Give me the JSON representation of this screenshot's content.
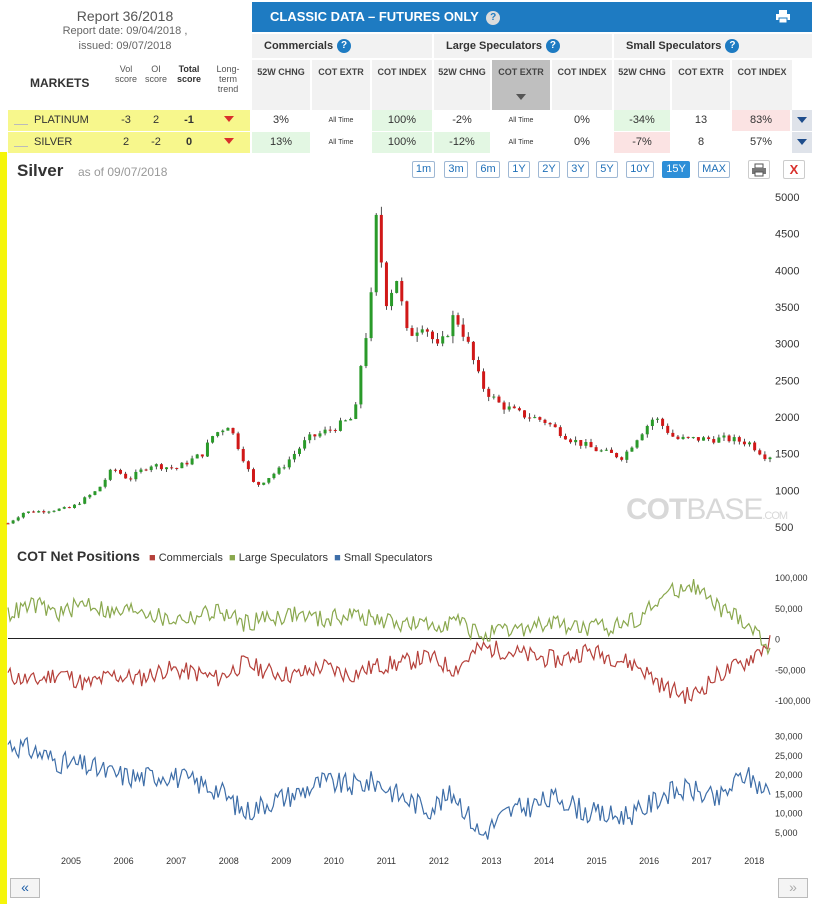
{
  "report": {
    "title": "Report 36/2018",
    "report_date": "Report date: 09/04/2018 ,",
    "issued": "issued: 09/07/2018"
  },
  "header": {
    "title": "CLASSIC DATA – FUTURES ONLY"
  },
  "groups": {
    "commercials": "Commercials",
    "large": "Large Speculators",
    "small": "Small Speculators"
  },
  "markets_header": {
    "markets": "MARKETS",
    "vol": "Vol score",
    "oi": "OI score",
    "total": "Total score",
    "trend": "Long-term trend"
  },
  "col_headers": {
    "chng": "52W CHNG",
    "extr": "COT EXTR",
    "index": "COT INDEX"
  },
  "rows": [
    {
      "name": "PLATINUM",
      "vol": "-3",
      "oi": "2",
      "total": "-1",
      "c_chng": "3%",
      "c_extr": "All Time",
      "c_index": "100%",
      "l_chng": "-2%",
      "l_extr": "All Time",
      "l_index": "0%",
      "s_chng": "-34%",
      "s_extr": "13",
      "s_index": "83%"
    },
    {
      "name": "SILVER",
      "vol": "2",
      "oi": "-2",
      "total": "0",
      "c_chng": "13%",
      "c_extr": "All Time",
      "c_index": "100%",
      "l_chng": "-12%",
      "l_extr": "All Time",
      "l_index": "0%",
      "s_chng": "-7%",
      "s_extr": "8",
      "s_index": "57%"
    }
  ],
  "chart_header": {
    "title": "Silver",
    "date": "as of 09/07/2018",
    "close": "X"
  },
  "ranges": [
    "1m",
    "3m",
    "6m",
    "1Y",
    "2Y",
    "3Y",
    "5Y",
    "10Y",
    "15Y",
    "MAX"
  ],
  "active_range": "15Y",
  "watermark": {
    "a": "COT",
    "b": "BASE",
    "c": ".COM"
  },
  "cot_title": "COT Net Positions",
  "nav": {
    "prev": "«",
    "next": "»"
  },
  "colors": {
    "commercials": "#b5403a",
    "large": "#8aa84e",
    "small": "#3e6ea8",
    "up": "#2a9a2a",
    "down": "#d01818"
  },
  "chart_data": [
    {
      "type": "candlestick",
      "title": "Silver",
      "x_ticks": [
        "2005",
        "2006",
        "2007",
        "2008",
        "2009",
        "2010",
        "2011",
        "2012",
        "2013",
        "2014",
        "2015",
        "2016",
        "2017",
        "2018"
      ],
      "y_ticks": [
        500,
        1000,
        1500,
        2000,
        2500,
        3000,
        3500,
        4000,
        4500,
        5000
      ],
      "ylim": [
        500,
        5000
      ],
      "x": [
        2004.3,
        2004.6,
        2005.0,
        2005.5,
        2006.0,
        2006.3,
        2006.6,
        2007.0,
        2007.5,
        2008.0,
        2008.2,
        2008.5,
        2008.8,
        2009.0,
        2009.5,
        2010.0,
        2010.5,
        2010.9,
        2011.0,
        2011.2,
        2011.3,
        2011.5,
        2011.7,
        2011.9,
        2012.2,
        2012.5,
        2012.8,
        2013.0,
        2013.3,
        2013.6,
        2014.0,
        2014.5,
        2015.0,
        2015.5,
        2016.0,
        2016.3,
        2016.6,
        2017.0,
        2017.5,
        2018.0,
        2018.4,
        2018.7
      ],
      "values": [
        550,
        700,
        720,
        760,
        1000,
        1300,
        1150,
        1350,
        1300,
        1500,
        1750,
        1900,
        1400,
        1050,
        1300,
        1700,
        1850,
        2000,
        2650,
        3500,
        4700,
        3600,
        3900,
        3100,
        3300,
        2900,
        3400,
        3100,
        2450,
        2200,
        2050,
        1950,
        1700,
        1550,
        1450,
        1750,
        2000,
        1700,
        1700,
        1700,
        1650,
        1470
      ]
    },
    {
      "type": "line",
      "title": "COT Net Positions",
      "x_ticks": [
        "2005",
        "2006",
        "2007",
        "2008",
        "2009",
        "2010",
        "2011",
        "2012",
        "2013",
        "2014",
        "2015",
        "2016",
        "2017",
        "2018"
      ],
      "y_ticks": [
        -100000,
        -50000,
        0,
        50000,
        100000
      ],
      "ylim": [
        -110000,
        110000
      ],
      "x": [
        2004.3,
        2004.8,
        2005.3,
        2005.8,
        2006.3,
        2006.8,
        2007.3,
        2007.8,
        2008.3,
        2008.8,
        2009.3,
        2009.8,
        2010.3,
        2010.8,
        2011.3,
        2011.8,
        2012.3,
        2012.8,
        2013.3,
        2013.8,
        2014.3,
        2014.8,
        2015.3,
        2015.8,
        2016.3,
        2016.8,
        2017.3,
        2017.8,
        2018.3,
        2018.8
      ],
      "series": [
        {
          "name": "Commercials",
          "values": [
            -60000,
            -70000,
            -55000,
            -75000,
            -60000,
            -65000,
            -50000,
            -55000,
            -65000,
            -40000,
            -55000,
            -60000,
            -45000,
            -60000,
            -45000,
            -40000,
            -30000,
            -50000,
            -15000,
            -20000,
            -30000,
            -35000,
            -20000,
            -30000,
            -45000,
            -80000,
            -95000,
            -60000,
            -40000,
            -5000
          ]
        },
        {
          "name": "Large Speculators",
          "values": [
            40000,
            55000,
            40000,
            60000,
            40000,
            50000,
            30000,
            35000,
            45000,
            25000,
            35000,
            40000,
            30000,
            40000,
            30000,
            25000,
            20000,
            30000,
            5000,
            10000,
            20000,
            25000,
            15000,
            20000,
            35000,
            70000,
            90000,
            50000,
            30000,
            -15000
          ]
        },
        {
          "name": "Small Speculators",
          "values": [
            28000,
            26000,
            23000,
            22000,
            20000,
            19000,
            20000,
            18000,
            16000,
            10000,
            13000,
            15000,
            18000,
            17000,
            18000,
            14000,
            11000,
            15000,
            4000,
            10000,
            12000,
            14000,
            10000,
            9000,
            10000,
            15000,
            16000,
            13000,
            20000,
            15000
          ]
        }
      ],
      "small_y_ticks": [
        5000,
        10000,
        15000,
        20000,
        25000,
        30000
      ],
      "small_ylim": [
        0,
        33000
      ]
    }
  ]
}
